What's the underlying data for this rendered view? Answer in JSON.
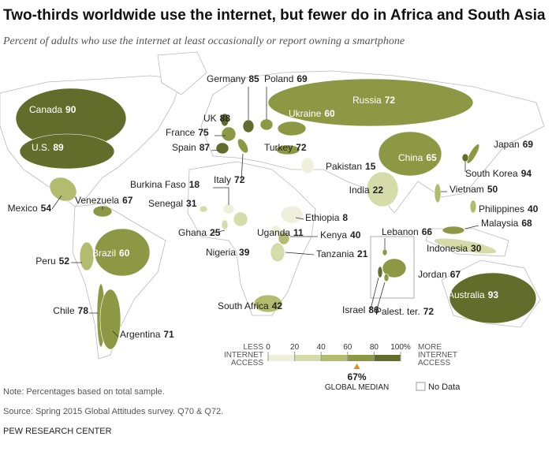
{
  "title": "Two-thirds worldwide use the internet, but fewer do in Africa and South Asia",
  "subtitle": "Percent of adults who use the internet at least occasionally or report owning a smartphone",
  "countries": [
    {
      "name": "Canada",
      "value": 90
    },
    {
      "name": "U.S.",
      "value": 89
    },
    {
      "name": "Mexico",
      "value": 54
    },
    {
      "name": "Venezuela",
      "value": 67
    },
    {
      "name": "Peru",
      "value": 52
    },
    {
      "name": "Brazil",
      "value": 60
    },
    {
      "name": "Chile",
      "value": 78
    },
    {
      "name": "Argentina",
      "value": 71
    },
    {
      "name": "UK",
      "value": 88
    },
    {
      "name": "France",
      "value": 75
    },
    {
      "name": "Spain",
      "value": 87
    },
    {
      "name": "Germany",
      "value": 85
    },
    {
      "name": "Poland",
      "value": 69
    },
    {
      "name": "Italy",
      "value": 72
    },
    {
      "name": "Russia",
      "value": 72
    },
    {
      "name": "Ukraine",
      "value": 60
    },
    {
      "name": "Turkey",
      "value": 72
    },
    {
      "name": "Burkina Faso",
      "value": 18
    },
    {
      "name": "Senegal",
      "value": 31
    },
    {
      "name": "Ghana",
      "value": 25
    },
    {
      "name": "Nigeria",
      "value": 39
    },
    {
      "name": "Uganda",
      "value": 11
    },
    {
      "name": "Ethiopia",
      "value": 8
    },
    {
      "name": "Kenya",
      "value": 40
    },
    {
      "name": "Tanzania",
      "value": 21
    },
    {
      "name": "South Africa",
      "value": 42
    },
    {
      "name": "Pakistan",
      "value": 15
    },
    {
      "name": "India",
      "value": 22
    },
    {
      "name": "China",
      "value": 65
    },
    {
      "name": "Japan",
      "value": 69
    },
    {
      "name": "South Korea",
      "value": 94
    },
    {
      "name": "Vietnam",
      "value": 50
    },
    {
      "name": "Philippines",
      "value": 40
    },
    {
      "name": "Malaysia",
      "value": 68
    },
    {
      "name": "Indonesia",
      "value": 30
    },
    {
      "name": "Lebanon",
      "value": 66
    },
    {
      "name": "Jordan",
      "value": 67
    },
    {
      "name": "Israel",
      "value": 86
    },
    {
      "name": "Palest. ter.",
      "value": 72
    },
    {
      "name": "Australia",
      "value": 93
    }
  ],
  "legend": {
    "less": [
      "LESS",
      "INTERNET",
      "ACCESS"
    ],
    "more": [
      "MORE",
      "INTERNET",
      "ACCESS"
    ],
    "ticks": [
      0,
      20,
      40,
      60,
      80,
      {
        "value": 100,
        "label": "100%"
      }
    ],
    "colors": [
      "#eef0db",
      "#d6dbaa",
      "#b3bb6e",
      "#8d9845",
      "#626d2c"
    ],
    "median": {
      "value": 67,
      "label": "67%",
      "text": "GLOBAL MEDIAN",
      "color": "#d8901e"
    },
    "no_data": "No Data"
  },
  "note": "Note: Percentages based on total sample.",
  "source": "Source: Spring 2015 Global Attitudes survey. Q70 & Q72.",
  "credit": "PEW RESEARCH CENTER"
}
